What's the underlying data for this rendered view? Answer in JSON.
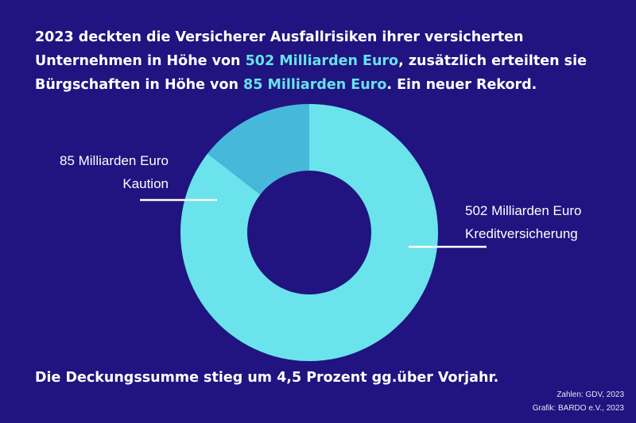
{
  "headline": {
    "part1": "2023 deckten die Versicherer Ausfallrisiken ihrer versicherten Unternehmen in Höhe von ",
    "highlight1": "502 Milliarden Euro",
    "part2": ", zusätzlich erteilten sie Bürgschaften in Höhe von ",
    "highlight2": "85 Milliarden Euro",
    "part3": ". Ein neuer Rekord."
  },
  "colors": {
    "background": "#211380",
    "highlight": "#66e2ec",
    "slice_kreditversicherung": "#6ae3ec",
    "slice_kaution": "#46b8da",
    "leader_line": "#ffffff"
  },
  "chart_data": {
    "type": "pie",
    "variant": "donut",
    "title": "",
    "start_angle_deg": -90,
    "slices": [
      {
        "label": "Kreditversicherung",
        "value_label": "502 Milliarden Euro",
        "value": 502,
        "unit": "Milliarden Euro",
        "color": "#6ae3ec"
      },
      {
        "label": "Kaution",
        "value_label": "85 Milliarden Euro",
        "value": 85,
        "unit": "Milliarden Euro",
        "color": "#46b8da"
      }
    ]
  },
  "footline": "Die Deckungssumme stieg um 4,5 Prozent gg.über Vorjahr.",
  "credits": {
    "source": "Zahlen: GDV, 2023",
    "graphic": "Grafik: BARDO e.V., 2023"
  }
}
